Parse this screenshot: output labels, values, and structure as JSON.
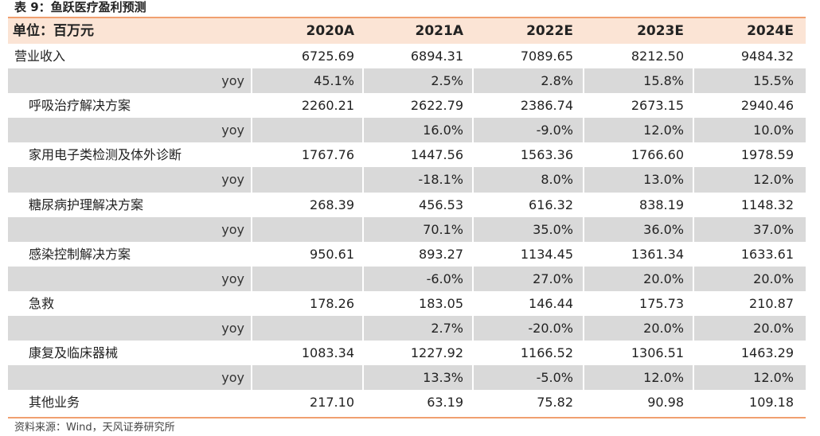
{
  "title": "表 9：鱼跃医疗盈利预测",
  "header": {
    "unit": "单位：百万元",
    "years": [
      "2020A",
      "2021A",
      "2022E",
      "2023E",
      "2024E"
    ]
  },
  "rows": [
    {
      "label": "营业收入",
      "type": "main",
      "values": [
        "6725.69",
        "6894.31",
        "7089.65",
        "8212.50",
        "9484.32"
      ]
    },
    {
      "label": "yoy",
      "type": "yoy",
      "values": [
        "45.1%",
        "2.5%",
        "2.8%",
        "15.8%",
        "15.5%"
      ]
    },
    {
      "label": "呼吸治疗解决方案",
      "type": "sub",
      "values": [
        "2260.21",
        "2622.79",
        "2386.74",
        "2673.15",
        "2940.46"
      ]
    },
    {
      "label": "yoy",
      "type": "yoy",
      "values": [
        "",
        "16.0%",
        "-9.0%",
        "12.0%",
        "10.0%"
      ]
    },
    {
      "label": "家用电子类检测及体外诊断",
      "type": "sub",
      "values": [
        "1767.76",
        "1447.56",
        "1563.36",
        "1766.60",
        "1978.59"
      ]
    },
    {
      "label": "yoy",
      "type": "yoy",
      "values": [
        "",
        "-18.1%",
        "8.0%",
        "13.0%",
        "12.0%"
      ]
    },
    {
      "label": "糖尿病护理解决方案",
      "type": "sub",
      "values": [
        "268.39",
        "456.53",
        "616.32",
        "838.19",
        "1148.32"
      ]
    },
    {
      "label": "yoy",
      "type": "yoy",
      "values": [
        "",
        "70.1%",
        "35.0%",
        "36.0%",
        "37.0%"
      ]
    },
    {
      "label": "感染控制解决方案",
      "type": "sub",
      "values": [
        "950.61",
        "893.27",
        "1134.45",
        "1361.34",
        "1633.61"
      ]
    },
    {
      "label": "yoy",
      "type": "yoy",
      "values": [
        "",
        "-6.0%",
        "27.0%",
        "20.0%",
        "20.0%"
      ]
    },
    {
      "label": "急救",
      "type": "sub",
      "values": [
        "178.26",
        "183.05",
        "146.44",
        "175.73",
        "210.87"
      ]
    },
    {
      "label": "yoy",
      "type": "yoy",
      "values": [
        "",
        "2.7%",
        "-20.0%",
        "20.0%",
        "20.0%"
      ]
    },
    {
      "label": "康复及临床器械",
      "type": "sub",
      "values": [
        "1083.34",
        "1227.92",
        "1166.52",
        "1306.51",
        "1463.29"
      ]
    },
    {
      "label": "yoy",
      "type": "yoy",
      "values": [
        "",
        "13.3%",
        "-5.0%",
        "12.0%",
        "12.0%"
      ]
    },
    {
      "label": "其他业务",
      "type": "sub",
      "values": [
        "217.10",
        "63.19",
        "75.82",
        "90.98",
        "109.18"
      ]
    }
  ],
  "source": "资料来源：Wind，天风证券研究所"
}
